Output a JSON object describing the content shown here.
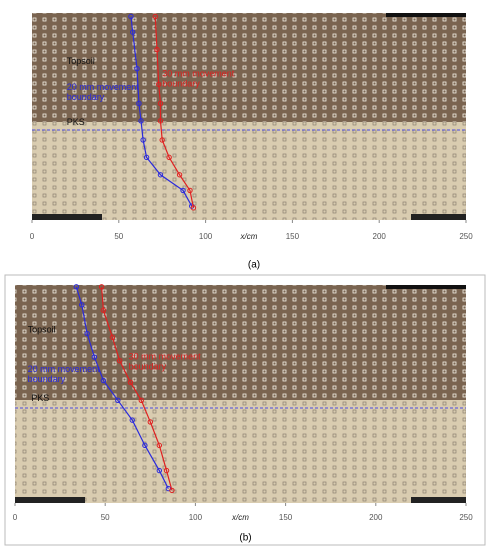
{
  "chart_data": [
    {
      "type": "line",
      "panel_label": "(a)",
      "xlabel": "x/cm",
      "xlim": [
        0,
        250
      ],
      "xticks": [
        0,
        50,
        100,
        150,
        200,
        250
      ],
      "ylim": [
        0,
        119
      ],
      "annotations": [
        {
          "text": "Topsoil",
          "x": 20,
          "y": 28
        },
        {
          "text": "PKS",
          "x": 20,
          "y": 63
        }
      ],
      "series": [
        {
          "label": [
            "20 mm movement",
            "boundary"
          ],
          "color": "#2a2adc",
          "label_x": 20,
          "label_y": 43,
          "x": [
            57,
            58,
            60.5,
            61.6,
            62.8,
            64,
            66,
            74,
            87,
            92
          ],
          "y": [
            2,
            11,
            32,
            52,
            62,
            73,
            83,
            93,
            102,
            111
          ]
        },
        {
          "label": [
            "30 mm movement",
            "boundary"
          ],
          "color": "#e02020",
          "label_x": 75,
          "label_y": 35,
          "x": [
            71,
            72,
            73,
            74,
            74,
            75,
            79,
            85,
            91,
            93
          ],
          "y": [
            2,
            21,
            41,
            52,
            62,
            73,
            83,
            93,
            102,
            112
          ]
        }
      ]
    },
    {
      "type": "line",
      "panel_label": "(b)",
      "xlabel": "x/cm",
      "xlim": [
        0,
        250
      ],
      "xticks": [
        0,
        50,
        100,
        150,
        200,
        250
      ],
      "ylim": [
        0,
        121
      ],
      "annotations": [
        {
          "text": "Topsoil",
          "x": 7,
          "y": 25
        },
        {
          "text": "PKS",
          "x": 9,
          "y": 63
        }
      ],
      "series": [
        {
          "label": [
            "20 mm movement",
            "boundary"
          ],
          "color": "#2a2adc",
          "label_x": 7,
          "label_y": 47,
          "x": [
            34,
            37,
            40,
            44,
            49,
            57,
            65,
            72,
            80,
            85
          ],
          "y": [
            1,
            11,
            27,
            40,
            53,
            64,
            75,
            89,
            103,
            113
          ]
        },
        {
          "label": [
            "30 mm movement",
            "boundary"
          ],
          "color": "#e02020",
          "label_x": 63,
          "label_y": 40,
          "x": [
            48,
            49,
            54,
            58,
            64,
            70,
            75,
            80,
            84,
            87
          ],
          "y": [
            1,
            14,
            29,
            42,
            54,
            64,
            76,
            89,
            103,
            114
          ]
        }
      ]
    }
  ]
}
